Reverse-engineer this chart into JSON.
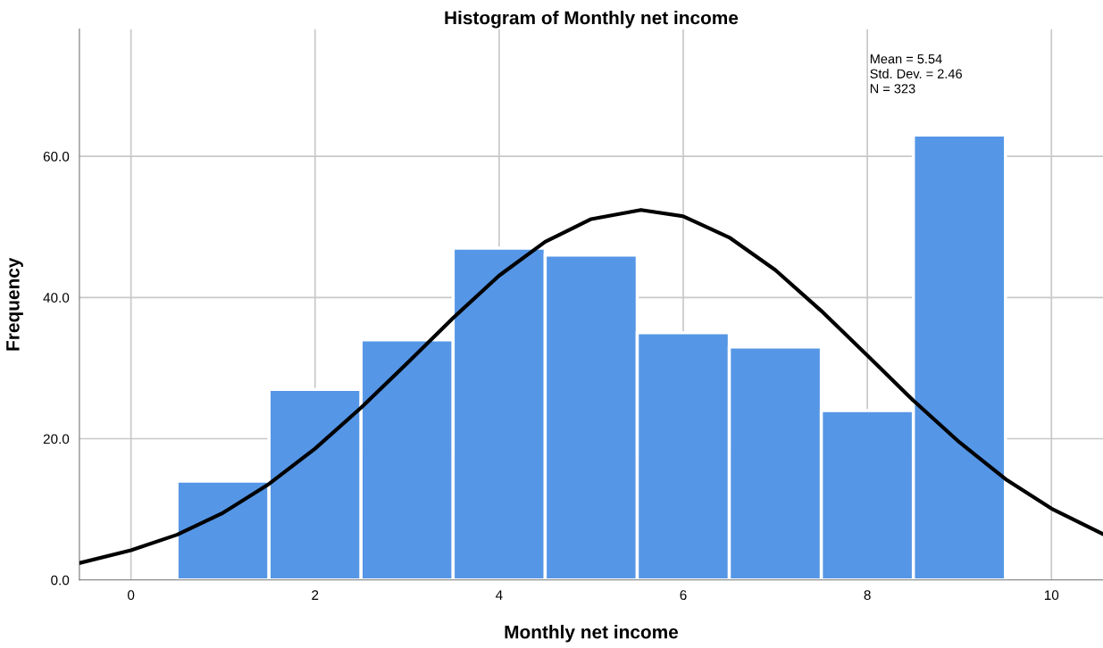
{
  "chart_data": {
    "type": "histogram",
    "title": "Histogram of Monthly net income",
    "xlabel": "Monthly net income",
    "ylabel": "Frequency",
    "bins": [
      0.5,
      1.5,
      2.5,
      3.5,
      4.5,
      5.5,
      6.5,
      7.5,
      8.5,
      9.5
    ],
    "series": [
      {
        "color": "#5596e6",
        "values": [
          14,
          27,
          34,
          47,
          46,
          35,
          33,
          24,
          63
        ]
      },
      {
        "type": "line",
        "color": "#000000",
        "x": [
          -0.56,
          0,
          0.5,
          1,
          1.5,
          2,
          2.5,
          3,
          3.5,
          4,
          4.5,
          5,
          5.54,
          6,
          6.5,
          7,
          7.5,
          8,
          8.5,
          9,
          9.5,
          10,
          10.56
        ],
        "values": [
          2.4,
          4.2,
          6.4,
          9.5,
          13.6,
          18.6,
          24.4,
          30.7,
          37.1,
          43.1,
          47.9,
          51.1,
          52.4,
          51.5,
          48.5,
          43.9,
          38.1,
          31.8,
          25.4,
          19.5,
          14.3,
          10.1,
          6.5
        ]
      }
    ],
    "xlim": [
      -0.56,
      10.56
    ],
    "ylim": [
      0,
      78
    ],
    "xticks": [
      0,
      2,
      4,
      6,
      8,
      10
    ],
    "yticks": [
      {
        "value": 0,
        "label": "0.0"
      },
      {
        "value": 20,
        "label": "20.0"
      },
      {
        "value": 40,
        "label": "40.0"
      },
      {
        "value": 60,
        "label": "60.0"
      }
    ],
    "grid": true,
    "annotations": [
      "Mean = 5.54",
      "Std. Dev. = 2.46",
      "N = 323"
    ]
  }
}
